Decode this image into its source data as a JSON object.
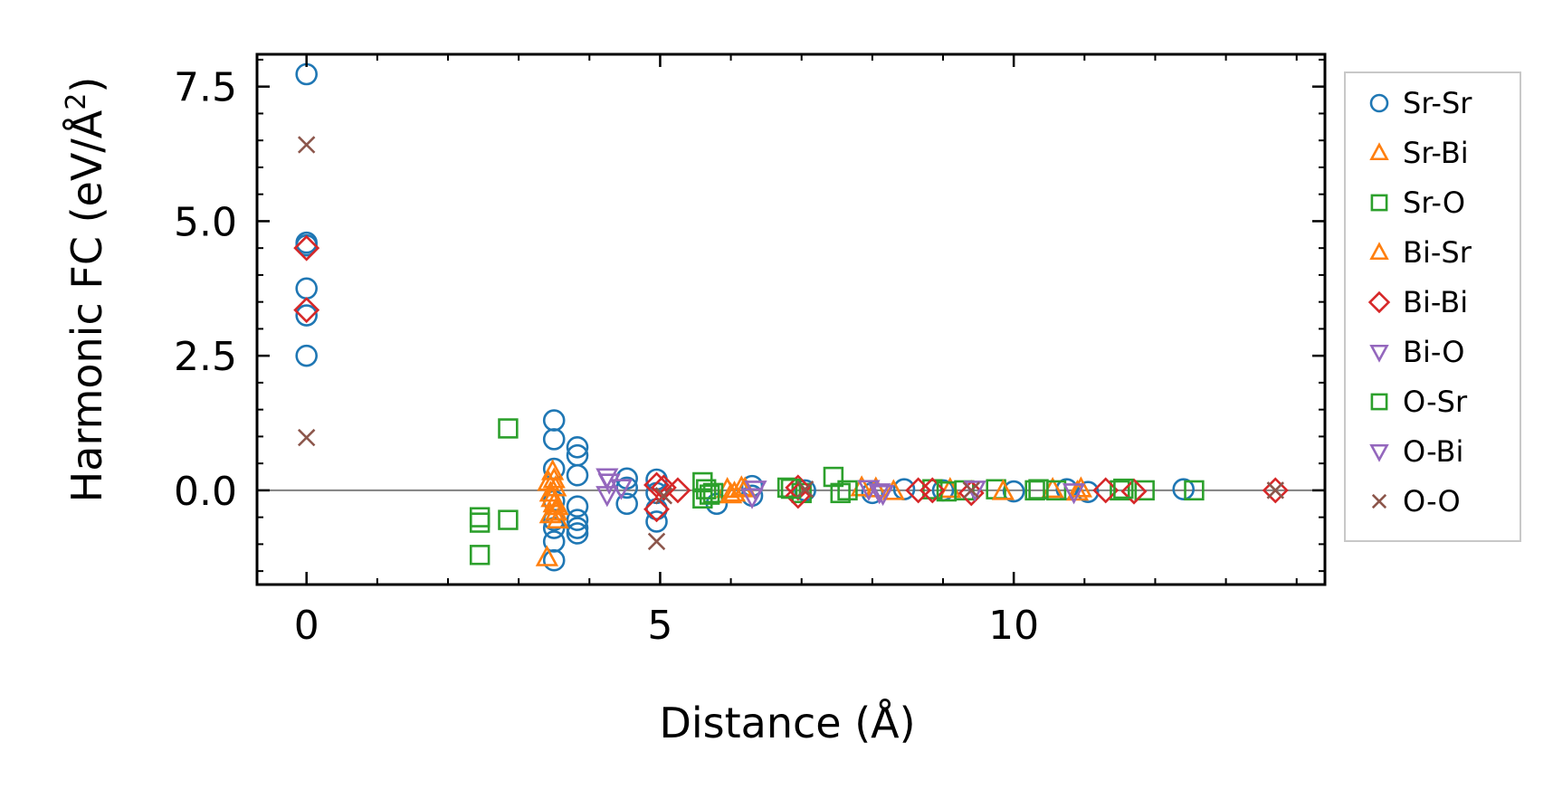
{
  "chart_data": {
    "type": "scatter",
    "xlabel": "Distance (Å)",
    "ylabel_main": "Harmonic FC (eV/Å",
    "ylabel_sup": "2",
    "ylabel_close": ")",
    "xlim": [
      -0.7,
      14.4
    ],
    "ylim": [
      -1.75,
      8.1
    ],
    "xticks": [
      0,
      5,
      10
    ],
    "xtick_labels": [
      "0",
      "5",
      "10"
    ],
    "yticks": [
      0,
      2.5,
      5,
      7.5
    ],
    "ytick_labels": [
      "0.0",
      "2.5",
      "5.0",
      "7.5"
    ],
    "zero_line": true,
    "grid": false,
    "legend_position": "outside-right",
    "series": [
      {
        "name": "Sr-Sr",
        "marker": "circle",
        "color": "#1f77b4",
        "points": [
          [
            0,
            7.73
          ],
          [
            0,
            4.6
          ],
          [
            0,
            4.55
          ],
          [
            0,
            3.75
          ],
          [
            0,
            3.25
          ],
          [
            0,
            2.5
          ],
          [
            3.5,
            1.3
          ],
          [
            3.5,
            0.95
          ],
          [
            3.5,
            0.4
          ],
          [
            3.5,
            -0.2
          ],
          [
            3.5,
            -0.55
          ],
          [
            3.5,
            -0.7
          ],
          [
            3.5,
            -0.95
          ],
          [
            3.5,
            -1.3
          ],
          [
            3.83,
            0.8
          ],
          [
            3.83,
            0.65
          ],
          [
            3.83,
            0.28
          ],
          [
            3.83,
            -0.3
          ],
          [
            3.83,
            -0.55
          ],
          [
            3.83,
            -0.7
          ],
          [
            3.83,
            -0.8
          ],
          [
            4.53,
            0.22
          ],
          [
            4.53,
            0.05
          ],
          [
            4.53,
            -0.25
          ],
          [
            4.95,
            0.2
          ],
          [
            4.95,
            -0.05
          ],
          [
            4.95,
            -0.35
          ],
          [
            4.95,
            -0.58
          ],
          [
            5.8,
            -0.25
          ],
          [
            6.3,
            0.08
          ],
          [
            6.3,
            -0.1
          ],
          [
            7.05,
            0
          ],
          [
            8.0,
            -0.05
          ],
          [
            8.45,
            0.02
          ],
          [
            9.0,
            0
          ],
          [
            10.0,
            -0.02
          ],
          [
            10.75,
            0.02
          ],
          [
            11.05,
            -0.03
          ],
          [
            12.4,
            0.02
          ]
        ]
      },
      {
        "name": "Sr-Bi",
        "marker": "triangle-up",
        "color": "#ff7f0e",
        "points": [
          [
            3.4,
            -1.25
          ],
          [
            3.42,
            0.15
          ],
          [
            3.45,
            -0.05
          ],
          [
            3.45,
            -0.45
          ],
          [
            3.48,
            0.35
          ],
          [
            3.5,
            -0.25
          ],
          [
            3.52,
            0.05
          ],
          [
            3.55,
            -0.55
          ],
          [
            3.55,
            -0.3
          ],
          [
            5.95,
            0.02
          ],
          [
            6.05,
            -0.05
          ],
          [
            6.2,
            0.03
          ],
          [
            7.85,
            0.05
          ],
          [
            8.3,
            -0.02
          ],
          [
            9.1,
            0.02
          ],
          [
            10.55,
            0.02
          ],
          [
            10.9,
            -0.03
          ]
        ]
      },
      {
        "name": "Sr-O",
        "marker": "square",
        "color": "#2ca02c",
        "points": [
          [
            2.45,
            -0.5
          ],
          [
            2.45,
            -0.6
          ],
          [
            2.45,
            -1.2
          ],
          [
            2.85,
            1.15
          ],
          [
            2.85,
            -0.55
          ],
          [
            5.6,
            0.15
          ],
          [
            5.6,
            -0.15
          ],
          [
            5.65,
            0.02
          ],
          [
            5.75,
            -0.05
          ],
          [
            6.8,
            0.05
          ],
          [
            7.0,
            -0.05
          ],
          [
            7.45,
            0.25
          ],
          [
            7.65,
            0
          ],
          [
            8.85,
            0.02
          ],
          [
            9.3,
            0
          ],
          [
            9.75,
            0.02
          ],
          [
            10.3,
            0
          ],
          [
            10.6,
            0
          ],
          [
            11.5,
            0
          ],
          [
            11.85,
            0
          ],
          [
            12.55,
            0
          ]
        ]
      },
      {
        "name": "Bi-Sr",
        "marker": "triangle-up",
        "color": "#ff7f0e",
        "points": [
          [
            3.47,
            -0.15
          ],
          [
            3.5,
            0.2
          ],
          [
            3.53,
            -0.4
          ],
          [
            6.0,
            -0.08
          ],
          [
            6.15,
            0.05
          ],
          [
            8.05,
            0.03
          ],
          [
            9.85,
            -0.02
          ],
          [
            10.95,
            0.03
          ]
        ]
      },
      {
        "name": "Bi-Bi",
        "marker": "diamond",
        "color": "#d62728",
        "points": [
          [
            0,
            4.5
          ],
          [
            0,
            3.35
          ],
          [
            4.95,
            0.1
          ],
          [
            4.95,
            -0.35
          ],
          [
            5.05,
            0.05
          ],
          [
            5.25,
            0
          ],
          [
            6.95,
            0.05
          ],
          [
            6.95,
            -0.1
          ],
          [
            8.65,
            0
          ],
          [
            8.85,
            0
          ],
          [
            9.4,
            -0.05
          ],
          [
            11.3,
            0
          ],
          [
            11.7,
            -0.02
          ],
          [
            13.7,
            0
          ]
        ]
      },
      {
        "name": "Bi-O",
        "marker": "triangle-down",
        "color": "#9467bd",
        "points": [
          [
            4.25,
            0.25
          ],
          [
            4.25,
            -0.08
          ],
          [
            4.45,
            0.05
          ],
          [
            6.3,
            -0.12
          ],
          [
            7.95,
            0.03
          ],
          [
            8.1,
            -0.03
          ]
        ]
      },
      {
        "name": "O-Sr",
        "marker": "square",
        "color": "#2ca02c",
        "points": [
          [
            5.7,
            -0.08
          ],
          [
            6.85,
            0.03
          ],
          [
            7.55,
            -0.05
          ],
          [
            9.05,
            -0.02
          ],
          [
            10.35,
            0.02
          ],
          [
            11.55,
            0.03
          ]
        ]
      },
      {
        "name": "O-Bi",
        "marker": "triangle-down",
        "color": "#9467bd",
        "points": [
          [
            4.28,
            0.15
          ],
          [
            6.35,
            0.02
          ],
          [
            8.15,
            -0.06
          ],
          [
            9.45,
            0.02
          ],
          [
            10.85,
            -0.03
          ]
        ]
      },
      {
        "name": "O-O",
        "marker": "x",
        "color": "#8c564b",
        "points": [
          [
            0,
            6.42
          ],
          [
            0,
            0.98
          ],
          [
            4.95,
            -0.95
          ],
          [
            5.05,
            -0.1
          ],
          [
            7.05,
            0.02
          ],
          [
            9.4,
            0
          ],
          [
            13.7,
            0
          ]
        ]
      }
    ]
  }
}
